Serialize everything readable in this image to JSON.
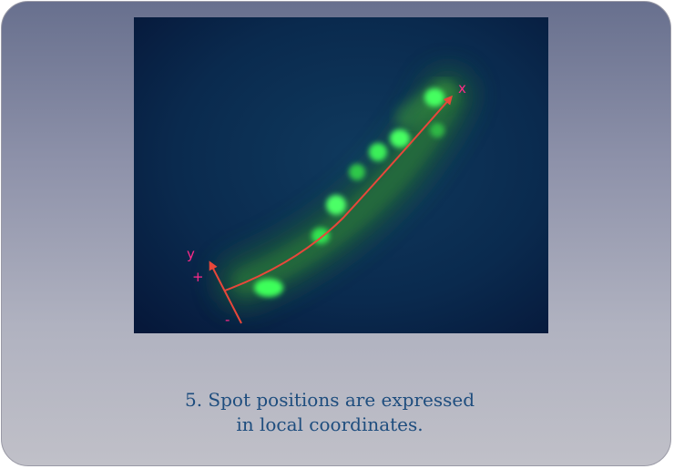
{
  "figure": {
    "axis_x_label": "x",
    "axis_y_label": "y",
    "plus_label": "+",
    "minus_label": "-"
  },
  "caption": {
    "line1": "5. Spot positions are expressed",
    "line2": "in local coordinates."
  },
  "colors": {
    "background_top": "#68708e",
    "background_bottom": "#c0c0c8",
    "micrograph_bg": "#0a2748",
    "spot_green": "#3dff5a",
    "arrow_red": "#e8473a",
    "label_magenta": "#ff2a8a",
    "caption_text": "#1e4d7e"
  }
}
